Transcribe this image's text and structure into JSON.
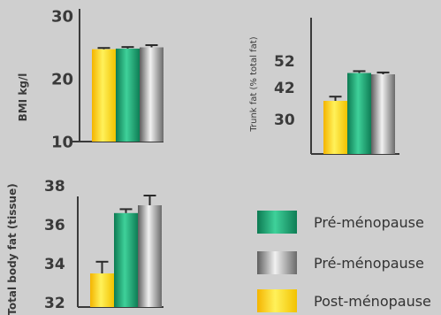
{
  "chart_data": [
    {
      "type": "bar",
      "ylabel": "BMI kg/l",
      "ytick_labels": [
        "30",
        "20",
        "10"
      ],
      "ylim": [
        10,
        30
      ],
      "series": [
        {
          "name": "Post-ménopause",
          "value": 24.7,
          "error": 0.2
        },
        {
          "name": "Pré-ménopause",
          "value": 24.8,
          "error": 0.25
        },
        {
          "name": "Pré-ménopause",
          "value": 25.0,
          "error": 0.35
        }
      ]
    },
    {
      "type": "bar",
      "ylabel": "Trunk fat (% total fat)",
      "ytick_labels": [
        "52",
        "42",
        "30"
      ],
      "ylim": [
        25,
        56
      ],
      "series": [
        {
          "name": "Post-ménopause",
          "value": 37.0,
          "error": 1.6
        },
        {
          "name": "Pré-ménopause",
          "value": 47.5,
          "error": 0.7
        },
        {
          "name": "Pré-ménopause",
          "value": 47.0,
          "error": 0.7
        }
      ]
    },
    {
      "type": "bar",
      "ylabel": "Total body fat (tissue)",
      "ytick_labels": [
        "38",
        "36",
        "34",
        "32"
      ],
      "ylim": [
        31.5,
        38.5
      ],
      "series": [
        {
          "name": "Post-ménopause",
          "value": 33.5,
          "error": 0.6
        },
        {
          "name": "Pré-ménopause",
          "value": 36.6,
          "error": 0.2
        },
        {
          "name": "Pré-ménopause",
          "value": 37.0,
          "error": 0.5
        }
      ]
    }
  ],
  "legend": [
    {
      "label": "Pré-ménopause",
      "swatch": "green"
    },
    {
      "label": "Pré-ménopause",
      "swatch": "gray"
    },
    {
      "label": "Post-ménopause",
      "swatch": "yellow"
    }
  ],
  "colors": {
    "background": "#cfcfcf",
    "axis": "#3a3a3a",
    "yellow": "#f7d21a",
    "green": "#1f9a6b",
    "gray": "#9e9e9e",
    "error_bar": "#2a2a2a"
  }
}
